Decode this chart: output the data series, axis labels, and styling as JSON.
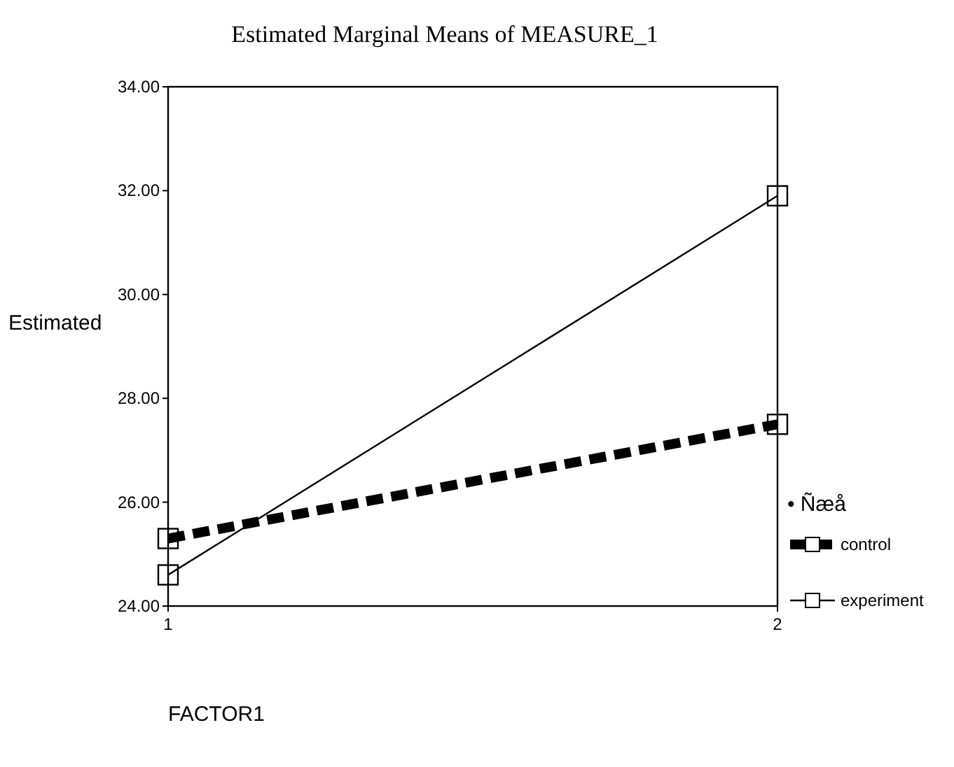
{
  "chart_data": {
    "type": "line",
    "title": "Estimated Marginal Means of MEASURE_1",
    "xlabel": "FACTOR1",
    "ylabel": "Estimated",
    "legend_title": "• Ñæå",
    "x": [
      1,
      2
    ],
    "xlim": [
      1,
      2
    ],
    "xticks": [
      1,
      2
    ],
    "ylim": [
      24,
      34
    ],
    "yticks": [
      {
        "value": 24,
        "label": "24.00"
      },
      {
        "value": 26,
        "label": "26.00"
      },
      {
        "value": 28,
        "label": "28.00"
      },
      {
        "value": 30,
        "label": "30.00"
      },
      {
        "value": 32,
        "label": "32.00"
      },
      {
        "value": 34,
        "label": "34.00"
      }
    ],
    "grid": false,
    "legend": "right",
    "marker": "square",
    "series": [
      {
        "name": "control",
        "color": "#000000",
        "values": [
          25.3,
          27.5
        ],
        "line_style": "dashed"
      },
      {
        "name": "experiment",
        "color": "#000000",
        "values": [
          24.6,
          31.9
        ],
        "line_style": "solid"
      }
    ]
  }
}
